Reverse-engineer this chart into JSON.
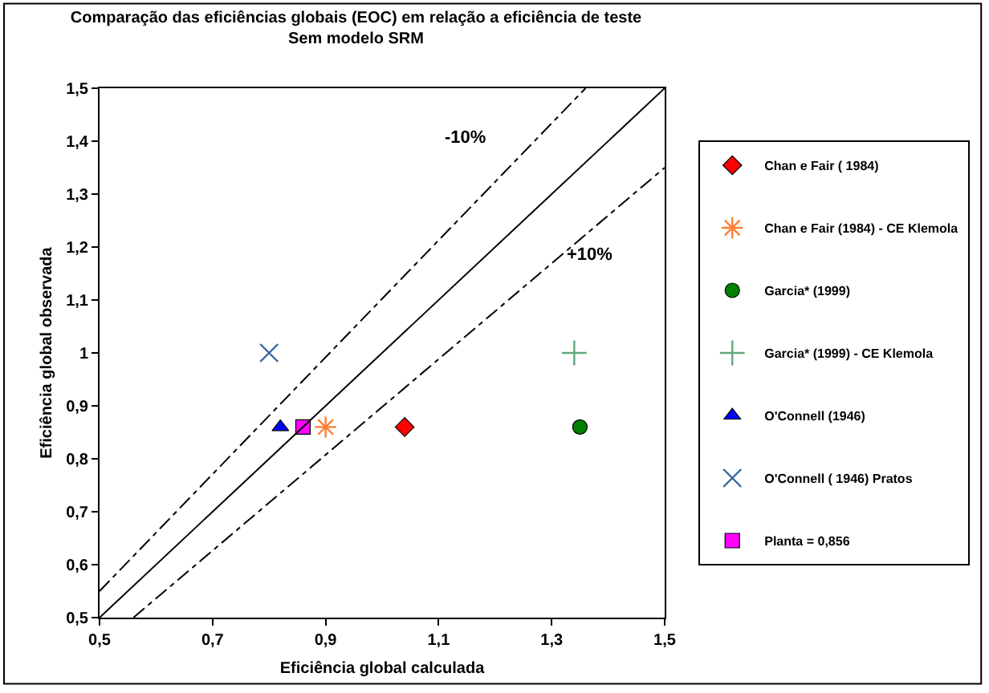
{
  "chart_data": {
    "type": "scatter",
    "title": "Comparação das eficiências globais (EOC) em relação a eficiência de teste",
    "subtitle": "Sem modelo SRM",
    "xlabel": "Eficiência global calculada",
    "ylabel": "Eficiência global observada",
    "xlim": [
      0.5,
      1.5
    ],
    "ylim": [
      0.5,
      1.5
    ],
    "xticks": [
      {
        "value": 0.5,
        "label": "0,5"
      },
      {
        "value": 0.7,
        "label": "0,7"
      },
      {
        "value": 0.9,
        "label": "0,9"
      },
      {
        "value": 1.1,
        "label": "1,1"
      },
      {
        "value": 1.3,
        "label": "1,3"
      },
      {
        "value": 1.5,
        "label": "1,5"
      }
    ],
    "yticks": [
      {
        "value": 0.5,
        "label": "0,5"
      },
      {
        "value": 0.6,
        "label": "0,6"
      },
      {
        "value": 0.7,
        "label": "0,7"
      },
      {
        "value": 0.8,
        "label": "0,8"
      },
      {
        "value": 0.9,
        "label": "0,9"
      },
      1,
      {
        "value": 1.1,
        "label": "1,1"
      },
      {
        "value": 1.2,
        "label": "1,2"
      },
      {
        "value": 1.3,
        "label": "1,3"
      },
      {
        "value": 1.4,
        "label": "1,4"
      },
      {
        "value": 1.5,
        "label": "1,5"
      }
    ],
    "legend": "right",
    "series": [
      {
        "name": "Chan e Fair ( 1984)",
        "color": "#ff0000",
        "marker": "diamond",
        "x": [
          1.04
        ],
        "values": [
          0.86
        ]
      },
      {
        "name": "Chan e Fair (1984) - CE Klemola",
        "color": "#ff8033",
        "x": [
          0.9
        ],
        "values": [
          0.86
        ]
      },
      {
        "name": "Garcia* (1999)",
        "color": "#008000",
        "marker": "circle",
        "x": [
          1.35
        ],
        "values": [
          0.86
        ]
      },
      {
        "name": "Garcia* (1999) - CE Klemola",
        "color": "#5fa87a",
        "marker": "cross",
        "x": [
          1.34
        ],
        "values": [
          1.0
        ]
      },
      {
        "name": "O'Connell (1946)",
        "color": "#0000ff",
        "marker": "triangle",
        "x": [
          0.82
        ],
        "values": [
          0.86
        ]
      },
      {
        "name": "O'Connell ( 1946) Pratos",
        "color": "#336699",
        "marker": "x",
        "x": [
          0.8
        ],
        "values": [
          1.0
        ]
      },
      {
        "name": "Planta = 0,856",
        "color": "#ff00ff",
        "marker": "square",
        "x": [
          0.86
        ],
        "values": [
          0.86
        ]
      },
      {
        "type": "line",
        "color": "#000000",
        "line_style": "solid",
        "x": [
          0.5,
          1.5
        ],
        "values": [
          0.5,
          1.5
        ]
      },
      {
        "type": "line",
        "color": "#000000",
        "line_style": "dashdot",
        "x": [
          0.5,
          1.36
        ],
        "values": [
          0.55,
          1.5
        ]
      },
      {
        "type": "line",
        "color": "#000000",
        "line_style": "dashdot",
        "x": [
          0.56,
          1.5
        ],
        "values": [
          0.5,
          1.35
        ]
      }
    ],
    "annotations": [
      "-10%",
      "+10%"
    ]
  }
}
